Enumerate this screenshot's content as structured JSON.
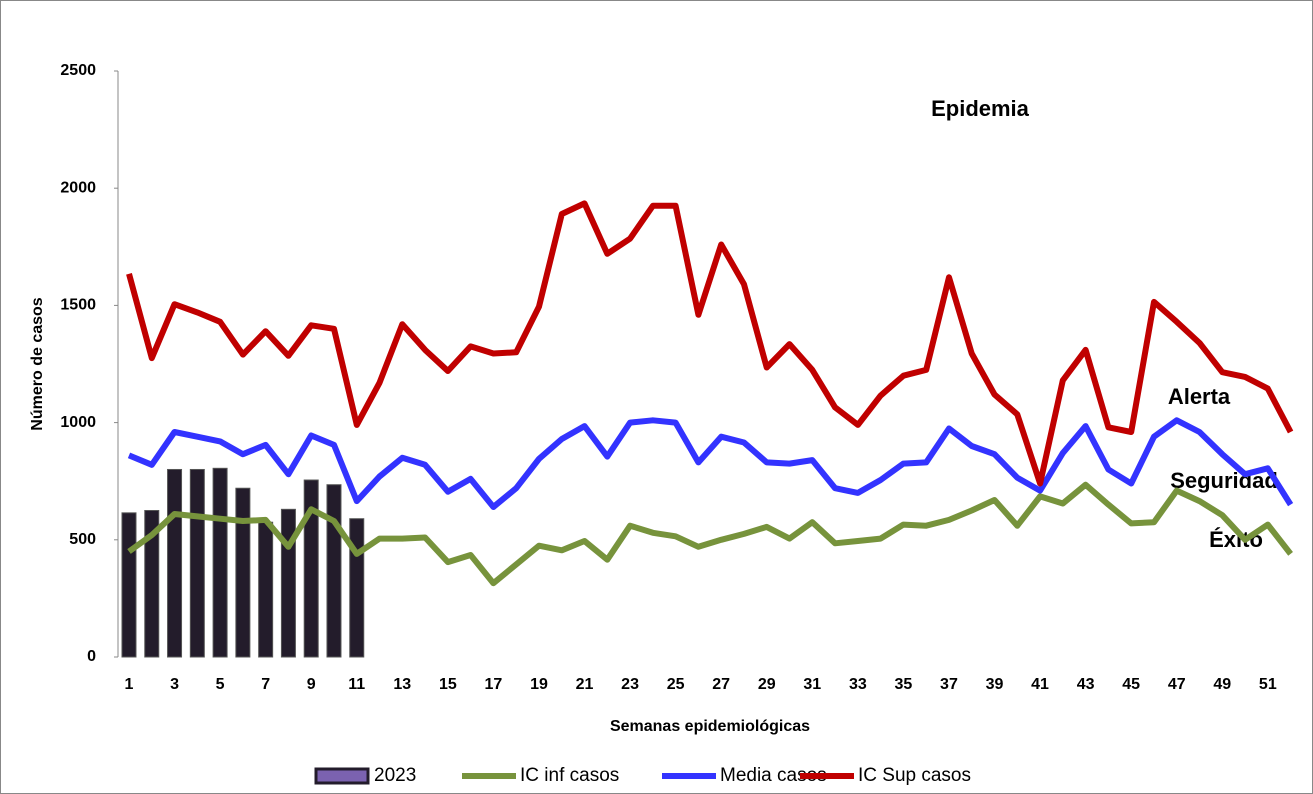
{
  "chart_data": {
    "type": "line",
    "y_label": "Número de casos",
    "x_label": "Semanas epidemiológicas",
    "annotations": [
      "Epidemia",
      "Alerta",
      "Seguridad",
      "Éxito"
    ],
    "categories": [
      1,
      null,
      3,
      null,
      5,
      null,
      7,
      null,
      9,
      null,
      11,
      null,
      13,
      null,
      15,
      null,
      17,
      null,
      19,
      null,
      21,
      null,
      23,
      null,
      25,
      null,
      27,
      null,
      29,
      null,
      31,
      null,
      33,
      null,
      35,
      null,
      37,
      null,
      39,
      null,
      41,
      null,
      43,
      null,
      45,
      null,
      47,
      null,
      49,
      null,
      51,
      null
    ],
    "ylim": [
      0,
      2500
    ],
    "yticks": [
      0,
      500,
      1000,
      1500,
      2000,
      2500
    ],
    "series": [
      {
        "name": "2023",
        "type": "bar",
        "color": "#231c2b",
        "values": [
          615,
          625,
          800,
          800,
          805,
          720,
          575,
          630,
          755,
          735,
          590,
          null,
          null,
          null,
          null,
          null,
          null,
          null,
          null,
          null,
          null,
          null,
          null,
          null,
          null,
          null,
          null,
          null,
          null,
          null,
          null,
          null,
          null,
          null,
          null,
          null,
          null,
          null,
          null,
          null,
          null,
          null,
          null,
          null,
          null,
          null,
          null,
          null,
          null,
          null,
          null,
          null
        ]
      },
      {
        "name": "IC inf casos",
        "type": "line",
        "color": "#77933c",
        "values": [
          450,
          520,
          610,
          600,
          590,
          580,
          585,
          470,
          630,
          580,
          440,
          505,
          505,
          510,
          405,
          435,
          315,
          395,
          475,
          455,
          495,
          415,
          560,
          530,
          515,
          470,
          500,
          525,
          555,
          505,
          575,
          485,
          495,
          505,
          565,
          560,
          585,
          625,
          670,
          560,
          685,
          655,
          735,
          650,
          570,
          575,
          710,
          665,
          605,
          500,
          565,
          440
        ]
      },
      {
        "name": "Media casos",
        "type": "line",
        "color": "#3333ff",
        "values": [
          860,
          820,
          960,
          940,
          920,
          865,
          905,
          780,
          945,
          905,
          665,
          770,
          850,
          820,
          705,
          760,
          640,
          720,
          845,
          930,
          985,
          855,
          1000,
          1010,
          1000,
          830,
          940,
          915,
          830,
          825,
          840,
          720,
          700,
          755,
          825,
          830,
          975,
          900,
          865,
          765,
          710,
          870,
          985,
          800,
          740,
          940,
          1010,
          960,
          865,
          780,
          805,
          650
        ]
      },
      {
        "name": "IC Sup casos",
        "type": "line",
        "color": "#c00000",
        "values": [
          1635,
          1275,
          1505,
          1470,
          1430,
          1290,
          1390,
          1285,
          1415,
          1400,
          990,
          1170,
          1420,
          1310,
          1220,
          1325,
          1295,
          1300,
          1495,
          1890,
          1935,
          1720,
          1785,
          1925,
          1925,
          1460,
          1760,
          1590,
          1235,
          1335,
          1225,
          1065,
          990,
          1115,
          1200,
          1225,
          1620,
          1295,
          1120,
          1035,
          740,
          1180,
          1310,
          980,
          960,
          1515,
          1430,
          1340,
          1215,
          1195,
          1145,
          960
        ]
      }
    ]
  }
}
